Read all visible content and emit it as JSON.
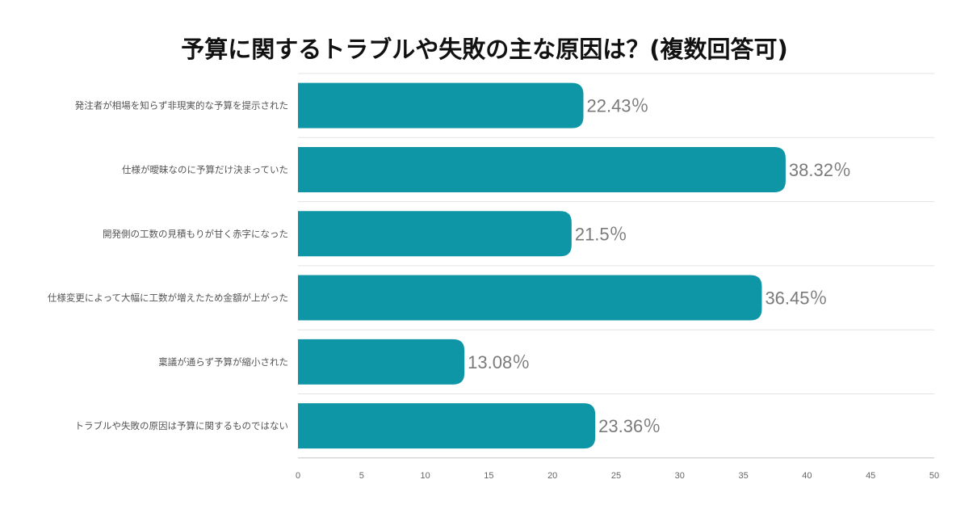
{
  "chart_data": {
    "type": "bar",
    "orientation": "horizontal",
    "title": "予算に関するトラブルや失敗の主な原因は？(複数回答可)",
    "categories": [
      "発注者が相場を知らず非現実的な予算を提示された",
      "仕様が曖昧なのに予算だけ決まっていた",
      "開発側の工数の見積もりが甘く赤字になった",
      "仕様変更によって大幅に工数が増えたため金額が上がった",
      "稟議が通らず予算が縮小された",
      "トラブルや失敗の原因は予算に関するものではない"
    ],
    "values": [
      22.43,
      38.32,
      21.5,
      36.45,
      13.08,
      23.36
    ],
    "value_labels": [
      "22.43％",
      "38.32％",
      "21.5％",
      "36.45％",
      "13.08％",
      "23.36％"
    ],
    "xlim": [
      0,
      50
    ],
    "xticks": [
      0,
      5,
      10,
      15,
      20,
      25,
      30,
      35,
      40,
      45,
      50
    ],
    "grid": true,
    "bar_color": "#0e95a6",
    "grid_color": "#e3e3e3"
  }
}
